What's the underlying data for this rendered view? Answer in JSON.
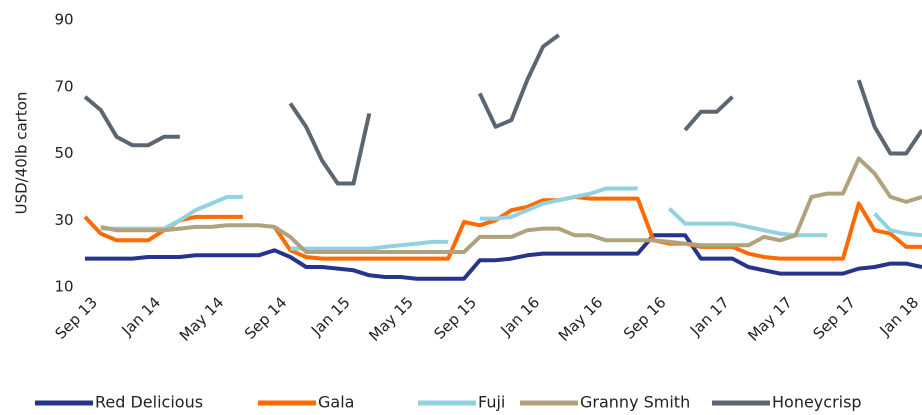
{
  "chart_data": {
    "type": "line",
    "y_label": "USD/40lb carton",
    "categories": [
      "Sep 13",
      null,
      null,
      null,
      "Jan 14",
      null,
      null,
      null,
      "May 14",
      null,
      null,
      null,
      "Sep 14",
      null,
      null,
      null,
      "Jan 15",
      null,
      null,
      null,
      "May 15",
      null,
      null,
      null,
      "Sep 15",
      null,
      null,
      null,
      "Jan 16",
      null,
      null,
      null,
      "May 16",
      null,
      null,
      null,
      "Sep 16",
      null,
      null,
      null,
      "Jan 17",
      null,
      null,
      null,
      "May 17",
      null,
      null,
      null,
      "Sep 17",
      null,
      null,
      null,
      "Jan 18",
      null
    ],
    "ylim": [
      10,
      90
    ],
    "yticks": [
      10,
      30,
      50,
      70,
      90
    ],
    "grid": false,
    "legend": "bottom",
    "series": [
      {
        "name": "Red Delicious",
        "color": "#27348b",
        "values": [
          18.5,
          18.5,
          18.5,
          18.5,
          19,
          19,
          19,
          19.5,
          19.5,
          19.5,
          19.5,
          19.5,
          21,
          19,
          16,
          16,
          15.5,
          15,
          13.5,
          13,
          13,
          12.5,
          12.5,
          12.5,
          12.5,
          18,
          18,
          18.5,
          19.5,
          20,
          20,
          20,
          20,
          20,
          20,
          20,
          25.5,
          25.5,
          25.5,
          18.5,
          18.5,
          18.5,
          16,
          15,
          14,
          14,
          14,
          14,
          14,
          15.5,
          16,
          17,
          17,
          16
        ]
      },
      {
        "name": "Gala",
        "color": "#ff6a00",
        "values": [
          31,
          26,
          24,
          24,
          24,
          27,
          30,
          31,
          31,
          31,
          31,
          null,
          28,
          21,
          19,
          18.5,
          18.5,
          18.5,
          18.5,
          18.5,
          18.5,
          18.5,
          18.5,
          18.5,
          29.5,
          28.5,
          30,
          33,
          34,
          36,
          36,
          37,
          36.5,
          36.5,
          36.5,
          36.5,
          24,
          23,
          23,
          22,
          22,
          22,
          20,
          19,
          18.5,
          18.5,
          18.5,
          18.5,
          18.5,
          35,
          27,
          26,
          22,
          22
        ]
      },
      {
        "name": "Fuji",
        "color": "#92d2e0",
        "values": [
          null,
          27.5,
          27.5,
          27.5,
          27.5,
          27.5,
          30,
          33,
          35,
          37,
          37,
          null,
          null,
          21.5,
          21.5,
          21.5,
          21.5,
          21.5,
          21.5,
          22,
          22.5,
          23,
          23.5,
          23.5,
          null,
          30.5,
          30.5,
          31,
          33,
          35,
          36,
          37,
          38,
          39.5,
          39.5,
          39.5,
          null,
          33.5,
          29,
          29,
          29,
          29,
          28,
          27,
          26,
          25.5,
          25.5,
          25.5,
          null,
          null,
          32,
          27,
          26,
          25.5
        ]
      },
      {
        "name": "Granny Smith",
        "color": "#b1a27e",
        "values": [
          null,
          28,
          27,
          27,
          27,
          27,
          27.5,
          28,
          28,
          28.5,
          28.5,
          28.5,
          28,
          25,
          20.5,
          20.5,
          20.5,
          20.5,
          20.5,
          20.5,
          20.5,
          20.5,
          20.5,
          20.5,
          20.5,
          25,
          25,
          25,
          27,
          27.5,
          27.5,
          25.5,
          25.5,
          24,
          24,
          24,
          24,
          23.5,
          23,
          22.5,
          22.5,
          22.5,
          22.5,
          25,
          24,
          25.5,
          37,
          38,
          38,
          48.5,
          44,
          37,
          35.5,
          37
        ]
      },
      {
        "name": "Honeycrisp",
        "color": "#5b6670",
        "values": [
          67,
          63,
          55,
          52.5,
          52.5,
          55,
          55,
          null,
          null,
          null,
          null,
          null,
          null,
          65,
          58,
          48,
          41,
          41,
          62,
          null,
          null,
          null,
          null,
          null,
          null,
          68,
          58,
          60,
          72,
          82,
          85.5,
          null,
          null,
          null,
          null,
          null,
          null,
          null,
          57,
          62.5,
          62.5,
          67,
          null,
          null,
          null,
          null,
          null,
          null,
          null,
          72,
          58,
          50,
          50,
          57
        ]
      }
    ]
  }
}
